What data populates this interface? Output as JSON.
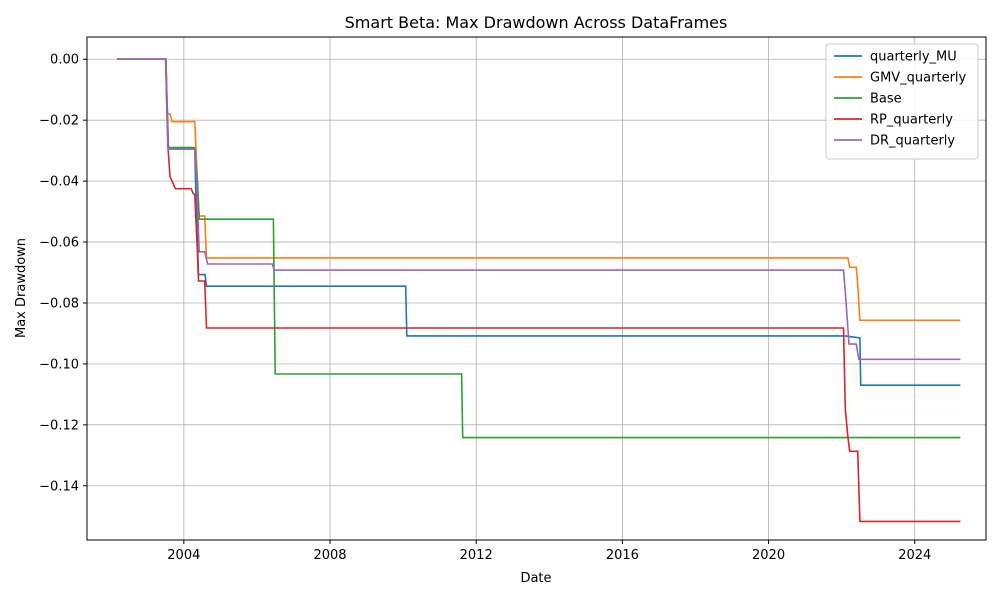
{
  "chart_data": {
    "type": "line",
    "title": "Smart Beta: Max Drawdown Across DataFrames",
    "xlabel": "Date",
    "ylabel": "Max Drawdown",
    "xlim": [
      2001.35,
      2025.95
    ],
    "ylim": [
      -0.1578,
      0.0073
    ],
    "x_ticks": [
      2004,
      2008,
      2012,
      2016,
      2020,
      2024
    ],
    "x_tick_labels": [
      "2004",
      "2008",
      "2012",
      "2016",
      "2020",
      "2024"
    ],
    "y_ticks": [
      0.0,
      -0.02,
      -0.04,
      -0.06,
      -0.08,
      -0.1,
      -0.12,
      -0.14
    ],
    "y_tick_labels": [
      "0.00",
      "−0.02",
      "−0.04",
      "−0.06",
      "−0.08",
      "−0.10",
      "−0.12",
      "−0.14"
    ],
    "grid": true,
    "legend_position": "top-right",
    "series": [
      {
        "name": "quarterly_MU",
        "color": "#1f77b4",
        "x": [
          2002.17,
          2003.51,
          2003.54,
          2003.58,
          2004.3,
          2004.32,
          2004.4,
          2004.58,
          2004.62,
          2010.07,
          2010.1,
          2022.1,
          2022.5,
          2022.52,
          2025.25
        ],
        "y": [
          0.0,
          0.0,
          -0.018,
          -0.0295,
          -0.0295,
          -0.04,
          -0.0707,
          -0.0707,
          -0.0745,
          -0.0745,
          -0.0908,
          -0.0908,
          -0.0915,
          -0.107,
          -0.107
        ]
      },
      {
        "name": "GMV_quarterly",
        "color": "#ff7f0e",
        "x": [
          2002.17,
          2003.5,
          2003.55,
          2003.62,
          2003.68,
          2004.3,
          2004.37,
          2004.42,
          2004.57,
          2004.62,
          2022.17,
          2022.22,
          2022.4,
          2022.44,
          2022.5,
          2025.25
        ],
        "y": [
          0.0,
          0.0,
          -0.018,
          -0.018,
          -0.0205,
          -0.0205,
          -0.04,
          -0.0515,
          -0.0515,
          -0.0652,
          -0.0652,
          -0.0683,
          -0.0683,
          -0.074,
          -0.0857,
          -0.0857
        ]
      },
      {
        "name": "Base",
        "color": "#2ca02c",
        "x": [
          2002.17,
          2003.51,
          2003.58,
          2004.3,
          2004.37,
          2004.42,
          2006.45,
          2006.5,
          2011.6,
          2011.63,
          2025.25
        ],
        "y": [
          0.0,
          0.0,
          -0.029,
          -0.029,
          -0.04,
          -0.0525,
          -0.0525,
          -0.1033,
          -0.1033,
          -0.1242,
          -0.1242
        ]
      },
      {
        "name": "RP_quarterly",
        "color": "#d62728",
        "x": [
          2002.17,
          2003.5,
          2003.56,
          2003.62,
          2003.77,
          2004.2,
          2004.25,
          2004.3,
          2004.37,
          2004.4,
          2004.57,
          2004.62,
          2022.05,
          2022.1,
          2022.17,
          2022.22,
          2022.44,
          2022.5,
          2025.25
        ],
        "y": [
          0.0,
          0.0,
          -0.028,
          -0.0385,
          -0.0425,
          -0.0425,
          -0.044,
          -0.0445,
          -0.0632,
          -0.0728,
          -0.0728,
          -0.0882,
          -0.0882,
          -0.1148,
          -0.124,
          -0.1287,
          -0.1287,
          -0.1517,
          -0.1517
        ]
      },
      {
        "name": "DR_quarterly",
        "color": "#9467bd",
        "x": [
          2002.17,
          2003.51,
          2003.57,
          2004.3,
          2004.35,
          2004.42,
          2004.57,
          2004.65,
          2006.42,
          2006.47,
          2022.05,
          2022.1,
          2022.2,
          2022.4,
          2022.47,
          2025.25
        ],
        "y": [
          0.0,
          0.0,
          -0.0295,
          -0.0295,
          -0.04,
          -0.0632,
          -0.0632,
          -0.0672,
          -0.0672,
          -0.0692,
          -0.0692,
          -0.0763,
          -0.0935,
          -0.0935,
          -0.0985,
          -0.0985
        ]
      }
    ]
  }
}
